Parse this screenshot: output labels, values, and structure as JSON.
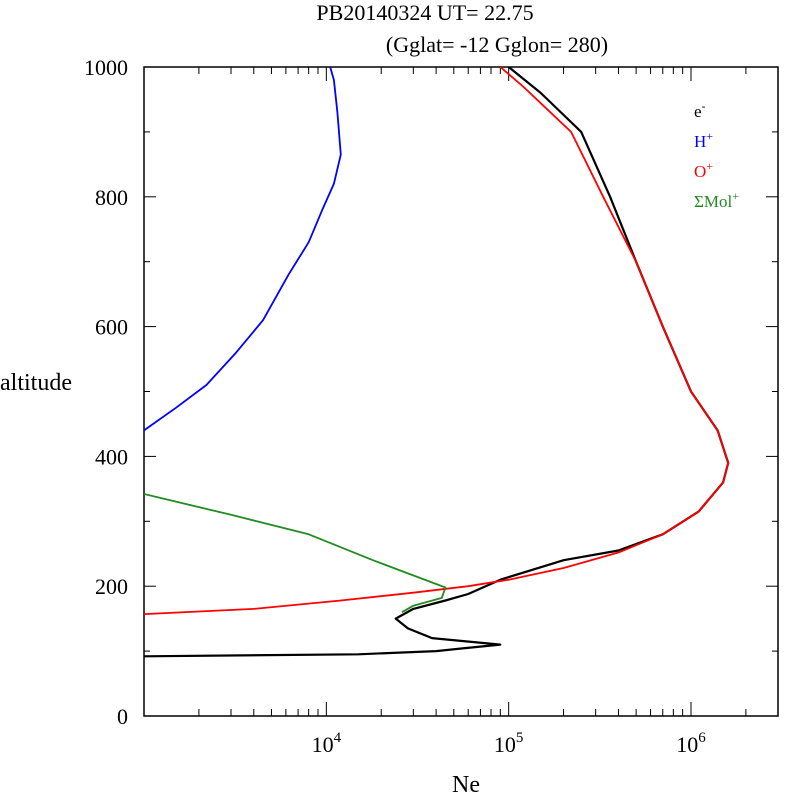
{
  "chart_data": {
    "type": "line",
    "title_line1": "PB20140324   UT=  22.75",
    "title_line2": "(Gglat= -12   Gglon=  280)",
    "xlabel": "Ne",
    "ylabel": "altitude",
    "x_scale": "log",
    "xlim": [
      1000,
      3000000
    ],
    "ylim": [
      0,
      1000
    ],
    "y_ticks": [
      0,
      200,
      400,
      600,
      800,
      1000
    ],
    "y_tick_labels": [
      "0",
      "200",
      "400",
      "600",
      "800",
      "1000"
    ],
    "x_ticks": [
      10000,
      100000,
      1000000
    ],
    "x_tick_labels": [
      {
        "base": "10",
        "exp": "4"
      },
      {
        "base": "10",
        "exp": "5"
      },
      {
        "base": "10",
        "exp": "6"
      }
    ],
    "legend_position": "top-right",
    "series": [
      {
        "name": "e",
        "sup": "-",
        "color": "#000000",
        "points": [
          [
            1000,
            92
          ],
          [
            15000,
            95
          ],
          [
            40000,
            100
          ],
          [
            55000,
            104
          ],
          [
            90000,
            110
          ],
          [
            38000,
            120
          ],
          [
            28000,
            135
          ],
          [
            24000,
            150
          ],
          [
            30000,
            165
          ],
          [
            45000,
            178
          ],
          [
            60000,
            188
          ],
          [
            90000,
            210
          ],
          [
            200000,
            240
          ],
          [
            400000,
            255
          ],
          [
            700000,
            280
          ],
          [
            1100000,
            315
          ],
          [
            1500000,
            360
          ],
          [
            1600000,
            390
          ],
          [
            1400000,
            440
          ],
          [
            1000000,
            500
          ],
          [
            700000,
            600
          ],
          [
            500000,
            700
          ],
          [
            360000,
            800
          ],
          [
            250000,
            900
          ],
          [
            150000,
            960
          ],
          [
            100000,
            1000
          ]
        ]
      },
      {
        "name": "H",
        "sup": "+",
        "color": "#0000ff",
        "points": [
          [
            1000,
            440
          ],
          [
            1500,
            475
          ],
          [
            2200,
            510
          ],
          [
            3200,
            560
          ],
          [
            4500,
            610
          ],
          [
            6200,
            680
          ],
          [
            8000,
            730
          ],
          [
            9500,
            780
          ],
          [
            11000,
            820
          ],
          [
            12000,
            865
          ],
          [
            11500,
            930
          ],
          [
            11000,
            980
          ],
          [
            10500,
            1000
          ]
        ]
      },
      {
        "name": "O",
        "sup": "+",
        "color": "#ff0000",
        "points": [
          [
            1000,
            157
          ],
          [
            4000,
            165
          ],
          [
            12000,
            178
          ],
          [
            30000,
            190
          ],
          [
            60000,
            200
          ],
          [
            100000,
            210
          ],
          [
            200000,
            228
          ],
          [
            400000,
            252
          ],
          [
            700000,
            280
          ],
          [
            1100000,
            315
          ],
          [
            1500000,
            360
          ],
          [
            1600000,
            390
          ],
          [
            1400000,
            440
          ],
          [
            1000000,
            500
          ],
          [
            700000,
            600
          ],
          [
            500000,
            700
          ],
          [
            330000,
            800
          ],
          [
            220000,
            900
          ],
          [
            120000,
            970
          ],
          [
            90000,
            1000
          ]
        ]
      },
      {
        "name": "ΣMol",
        "sup": "+",
        "color": "#228b22",
        "points": [
          [
            1000,
            342
          ],
          [
            3000,
            310
          ],
          [
            8000,
            280
          ],
          [
            18000,
            240
          ],
          [
            45000,
            198
          ],
          [
            43000,
            182
          ],
          [
            30000,
            170
          ],
          [
            26000,
            160
          ]
        ]
      }
    ]
  }
}
